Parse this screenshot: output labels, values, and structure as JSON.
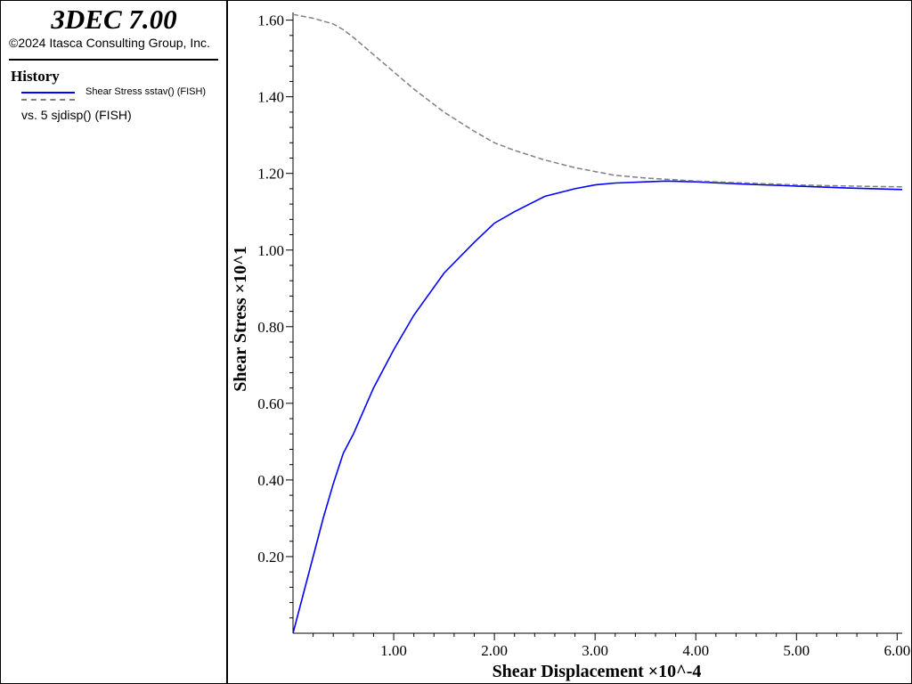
{
  "app": {
    "title": "3DEC 7.00",
    "copyright": "©2024 Itasca Consulting Group, Inc."
  },
  "legend": {
    "heading": "History",
    "series_label": "Shear Stress sstav() (FISH)",
    "vs_label": "vs. 5 sjdisp() (FISH)"
  },
  "colors": {
    "series_primary": "#0000ff",
    "series_secondary": "#808080",
    "axis": "#000000",
    "background": "#ffffff"
  },
  "chart_data": {
    "type": "line",
    "xlabel": "Shear Displacement ×10^-4",
    "ylabel": "Shear Stress ×10^1",
    "xlim": [
      0,
      6.05
    ],
    "ylim": [
      0,
      1.62
    ],
    "xticks": [
      "1.00",
      "2.00",
      "3.00",
      "4.00",
      "5.00",
      "6.00"
    ],
    "yticks": [
      "0.20",
      "0.40",
      "0.60",
      "0.80",
      "1.00",
      "1.20",
      "1.40",
      "1.60"
    ],
    "grid": false,
    "legend_position": "left-panel",
    "series": [
      {
        "style": "solid",
        "color": "#0000ff",
        "x": [
          0,
          0.1,
          0.2,
          0.3,
          0.4,
          0.5,
          0.6,
          0.8,
          1.0,
          1.2,
          1.5,
          1.8,
          2.0,
          2.2,
          2.5,
          2.8,
          3.0,
          3.2,
          3.5,
          3.7,
          4.0,
          4.5,
          5.0,
          5.5,
          6.05
        ],
        "y": [
          0.0,
          0.1,
          0.2,
          0.3,
          0.39,
          0.47,
          0.52,
          0.64,
          0.74,
          0.83,
          0.94,
          1.02,
          1.07,
          1.1,
          1.14,
          1.16,
          1.17,
          1.175,
          1.178,
          1.18,
          1.178,
          1.172,
          1.167,
          1.162,
          1.158
        ]
      },
      {
        "style": "dashed",
        "color": "#808080",
        "x": [
          0,
          0.2,
          0.4,
          0.5,
          0.6,
          0.8,
          1.0,
          1.2,
          1.5,
          1.8,
          2.0,
          2.2,
          2.5,
          2.8,
          3.0,
          3.2,
          3.5,
          3.7,
          4.0,
          4.5,
          5.0,
          5.5,
          6.05
        ],
        "y": [
          1.615,
          1.605,
          1.59,
          1.575,
          1.555,
          1.51,
          1.465,
          1.42,
          1.36,
          1.31,
          1.28,
          1.26,
          1.235,
          1.215,
          1.205,
          1.195,
          1.188,
          1.185,
          1.18,
          1.175,
          1.17,
          1.167,
          1.165
        ]
      }
    ]
  }
}
